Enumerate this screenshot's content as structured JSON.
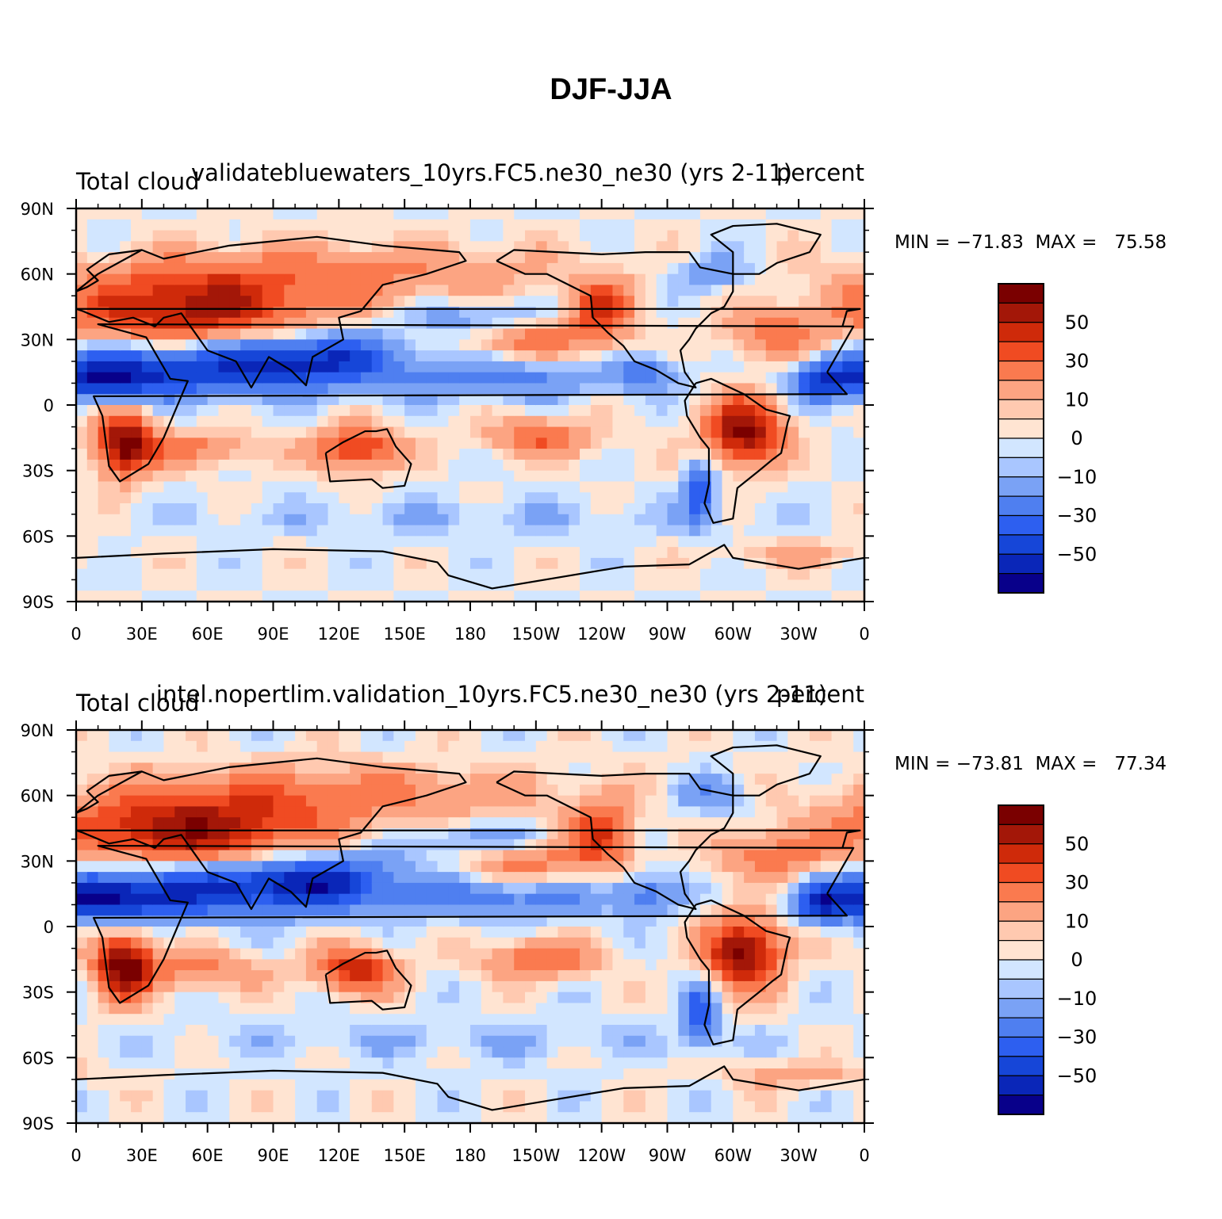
{
  "title": "DJF-JJA",
  "chart_data": [
    {
      "type": "heatmap",
      "case_title": "validatebluewaters_10yrs.FC5.ne30_ne30 (yrs 2-11)",
      "left_label": "Total cloud",
      "right_label": "percent",
      "stats": {
        "min_label": "MIN =",
        "min": "−71.83",
        "max_label": "MAX =",
        "max": "75.58"
      },
      "x_ticks": [
        "0",
        "30E",
        "60E",
        "90E",
        "120E",
        "150E",
        "180",
        "150W",
        "120W",
        "90W",
        "60W",
        "30W",
        "0"
      ],
      "y_ticks": [
        "90N",
        "60N",
        "30N",
        "0",
        "30S",
        "60S",
        "90S"
      ],
      "xlim": [
        0,
        360
      ],
      "ylim": [
        -90,
        90
      ],
      "colorbar_labels": [
        "50",
        "30",
        "10",
        "0",
        "−10",
        "−30",
        "−50"
      ]
    },
    {
      "type": "heatmap",
      "case_title": "intel.nopertlim.validation_10yrs.FC5.ne30_ne30 (yrs 2-11)",
      "left_label": "Total cloud",
      "right_label": "percent",
      "stats": {
        "min_label": "MIN =",
        "min": "−73.81",
        "max_label": "MAX =",
        "max": "77.34"
      },
      "x_ticks": [
        "0",
        "30E",
        "60E",
        "90E",
        "120E",
        "150E",
        "180",
        "150W",
        "120W",
        "90W",
        "60W",
        "30W",
        "0"
      ],
      "y_ticks": [
        "90N",
        "60N",
        "30N",
        "0",
        "30S",
        "60S",
        "90S"
      ],
      "xlim": [
        0,
        360
      ],
      "ylim": [
        -90,
        90
      ],
      "colorbar_labels": [
        "50",
        "30",
        "10",
        "0",
        "−10",
        "−30",
        "−50"
      ]
    }
  ],
  "palette": [
    "#08008a",
    "#0a26b8",
    "#1646d8",
    "#2d5ff0",
    "#4f7ff0",
    "#7aa2f5",
    "#a9c6ff",
    "#d2e6ff",
    "#ffe4d2",
    "#ffc9b0",
    "#fca482",
    "#fa7a4f",
    "#f04b22",
    "#cf2a0a",
    "#a31708",
    "#7a0000"
  ]
}
